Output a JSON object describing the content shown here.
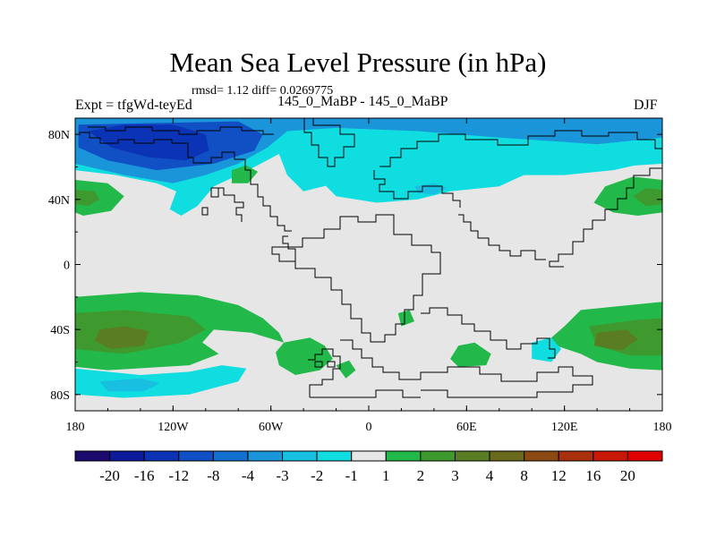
{
  "header": {
    "title": "Mean Sea Level Pressure (in hPa)",
    "stats": "rmsd= 1.12 diff= 0.0269775",
    "left_label": "Expt = tfgWd-teyEd",
    "center_label": "145_0_MaBP - 145_0_MaBP",
    "right_label": "DJF"
  },
  "chart_data": {
    "type": "heatmap",
    "title": "Mean Sea Level Pressure (in hPa)",
    "xlabel": "",
    "ylabel": "",
    "xlim": [
      -180,
      180
    ],
    "ylim": [
      -90,
      90
    ],
    "x_ticks": [
      {
        "value": -180,
        "label": "180"
      },
      {
        "value": -120,
        "label": "120W"
      },
      {
        "value": -60,
        "label": "60W"
      },
      {
        "value": 0,
        "label": "0"
      },
      {
        "value": 60,
        "label": "60E"
      },
      {
        "value": 120,
        "label": "120E"
      },
      {
        "value": 180,
        "label": "180"
      }
    ],
    "y_ticks": [
      {
        "value": 80,
        "label": "80N"
      },
      {
        "value": 40,
        "label": "40N"
      },
      {
        "value": 0,
        "label": "0"
      },
      {
        "value": -40,
        "label": "40S"
      },
      {
        "value": -80,
        "label": "80S"
      }
    ],
    "colorbar": {
      "levels": [
        "-20",
        "-16",
        "-12",
        "-8",
        "-4",
        "-3",
        "-2",
        "-1",
        "1",
        "2",
        "3",
        "4",
        "8",
        "12",
        "16",
        "20"
      ],
      "colors": [
        "#1c0a6e",
        "#0d1a9c",
        "#0a33b5",
        "#1050c4",
        "#1470d0",
        "#1a95da",
        "#18bfe0",
        "#10dde0",
        "#e6e6e6",
        "#22b84a",
        "#3e9a2e",
        "#5a7c22",
        "#6a6a1c",
        "#8a4a12",
        "#a8300c",
        "#c81808",
        "#e00000"
      ]
    },
    "regions": [
      {
        "name": "arctic-low-core",
        "level_index": 2,
        "polygon": [
          [
            -172,
            82
          ],
          [
            -150,
            86
          ],
          [
            -120,
            86
          ],
          [
            -100,
            80
          ],
          [
            -98,
            70
          ],
          [
            -112,
            64
          ],
          [
            -135,
            66
          ],
          [
            -158,
            72
          ]
        ]
      },
      {
        "name": "arctic-low-inner",
        "level_index": 3,
        "polygon": [
          [
            -178,
            86
          ],
          [
            -80,
            88
          ],
          [
            -65,
            80
          ],
          [
            -70,
            70
          ],
          [
            -95,
            62
          ],
          [
            -130,
            58
          ],
          [
            -160,
            64
          ],
          [
            -178,
            72
          ]
        ]
      },
      {
        "name": "arctic-low-mid",
        "level_index": 5,
        "polygon": [
          [
            -180,
            90
          ],
          [
            180,
            90
          ],
          [
            180,
            78
          ],
          [
            140,
            74
          ],
          [
            80,
            78
          ],
          [
            30,
            82
          ],
          [
            -20,
            84
          ],
          [
            -50,
            82
          ],
          [
            -62,
            72
          ],
          [
            -80,
            62
          ],
          [
            -100,
            55
          ],
          [
            -120,
            50
          ],
          [
            -150,
            55
          ],
          [
            -180,
            62
          ]
        ]
      },
      {
        "name": "arctic-low-outer",
        "level_index": 7,
        "polygon": [
          [
            -180,
            90
          ],
          [
            180,
            90
          ],
          [
            180,
            62
          ],
          [
            150,
            60
          ],
          [
            115,
            55
          ],
          [
            90,
            60
          ],
          [
            60,
            52
          ],
          [
            20,
            55
          ],
          [
            0,
            58
          ],
          [
            -20,
            50
          ],
          [
            -40,
            45
          ],
          [
            -50,
            55
          ],
          [
            -55,
            68
          ],
          [
            -70,
            60
          ],
          [
            -80,
            55
          ],
          [
            -95,
            48
          ],
          [
            -105,
            36
          ],
          [
            -115,
            30
          ],
          [
            -122,
            34
          ],
          [
            -118,
            45
          ],
          [
            -130,
            50
          ],
          [
            -155,
            55
          ],
          [
            -180,
            58
          ]
        ]
      },
      {
        "name": "siberian-low",
        "level_index": 7,
        "polygon": [
          [
            -30,
            52
          ],
          [
            -10,
            58
          ],
          [
            30,
            62
          ],
          [
            70,
            65
          ],
          [
            110,
            72
          ],
          [
            150,
            70
          ],
          [
            168,
            62
          ],
          [
            150,
            58
          ],
          [
            120,
            55
          ],
          [
            95,
            55
          ],
          [
            80,
            48
          ],
          [
            50,
            45
          ],
          [
            30,
            40
          ],
          [
            5,
            38
          ],
          [
            -20,
            42
          ]
        ]
      },
      {
        "name": "siberian-low-core",
        "level_index": 6,
        "polygon": [
          [
            28,
            48
          ],
          [
            40,
            50
          ],
          [
            48,
            47
          ],
          [
            40,
            43
          ],
          [
            30,
            44
          ]
        ]
      },
      {
        "name": "nw-pacific-high",
        "level_index": 9,
        "polygon": [
          [
            -180,
            52
          ],
          [
            -160,
            50
          ],
          [
            -150,
            42
          ],
          [
            -158,
            33
          ],
          [
            -175,
            30
          ],
          [
            -180,
            32
          ]
        ]
      },
      {
        "name": "nw-pacific-high-core",
        "level_index": 10,
        "polygon": [
          [
            -180,
            46
          ],
          [
            -168,
            45
          ],
          [
            -165,
            40
          ],
          [
            -172,
            36
          ],
          [
            -180,
            37
          ]
        ]
      },
      {
        "name": "ne-pacific-high",
        "level_index": 9,
        "polygon": [
          [
            180,
            52
          ],
          [
            162,
            54
          ],
          [
            145,
            48
          ],
          [
            138,
            38
          ],
          [
            150,
            32
          ],
          [
            165,
            30
          ],
          [
            180,
            32
          ]
        ]
      },
      {
        "name": "ne-pacific-high-core",
        "level_index": 10,
        "polygon": [
          [
            180,
            46
          ],
          [
            170,
            47
          ],
          [
            162,
            42
          ],
          [
            170,
            36
          ],
          [
            180,
            37
          ]
        ]
      },
      {
        "name": "small-high-a",
        "level_index": 9,
        "polygon": [
          [
            -84,
            58
          ],
          [
            -75,
            61
          ],
          [
            -68,
            57
          ],
          [
            -74,
            50
          ],
          [
            -84,
            50
          ]
        ]
      },
      {
        "name": "south-high-west",
        "level_index": 9,
        "polygon": [
          [
            -180,
            -20
          ],
          [
            -140,
            -17
          ],
          [
            -105,
            -19
          ],
          [
            -80,
            -25
          ],
          [
            -65,
            -33
          ],
          [
            -55,
            -42
          ],
          [
            -52,
            -48
          ],
          [
            -62,
            -45
          ],
          [
            -72,
            -42
          ],
          [
            -95,
            -40
          ],
          [
            -102,
            -48
          ],
          [
            -92,
            -55
          ],
          [
            -110,
            -62
          ],
          [
            -160,
            -65
          ],
          [
            -180,
            -63
          ]
        ]
      },
      {
        "name": "south-high-west-mid",
        "level_index": 10,
        "polygon": [
          [
            -180,
            -30
          ],
          [
            -150,
            -28
          ],
          [
            -110,
            -32
          ],
          [
            -100,
            -40
          ],
          [
            -115,
            -48
          ],
          [
            -150,
            -55
          ],
          [
            -180,
            -52
          ]
        ]
      },
      {
        "name": "south-high-west-core",
        "level_index": 11,
        "polygon": [
          [
            -165,
            -40
          ],
          [
            -150,
            -38
          ],
          [
            -135,
            -41
          ],
          [
            -138,
            -50
          ],
          [
            -158,
            -52
          ],
          [
            -168,
            -47
          ]
        ]
      },
      {
        "name": "south-high-atlantic",
        "level_index": 9,
        "polygon": [
          [
            -52,
            -48
          ],
          [
            -36,
            -45
          ],
          [
            -27,
            -50
          ],
          [
            -22,
            -58
          ],
          [
            -30,
            -65
          ],
          [
            -45,
            -68
          ],
          [
            -55,
            -62
          ],
          [
            -57,
            -54
          ]
        ]
      },
      {
        "name": "south-high-atlantic-bit",
        "level_index": 9,
        "polygon": [
          [
            -20,
            -62
          ],
          [
            -12,
            -59
          ],
          [
            -8,
            -65
          ],
          [
            -14,
            -70
          ]
        ]
      },
      {
        "name": "south-high-small",
        "level_index": 9,
        "polygon": [
          [
            18,
            -30
          ],
          [
            25,
            -28
          ],
          [
            28,
            -35
          ],
          [
            20,
            -38
          ]
        ]
      },
      {
        "name": "south-high-indian",
        "level_index": 9,
        "polygon": [
          [
            55,
            -50
          ],
          [
            65,
            -48
          ],
          [
            75,
            -55
          ],
          [
            72,
            -62
          ],
          [
            55,
            -63
          ],
          [
            50,
            -58
          ]
        ]
      },
      {
        "name": "south-high-east",
        "level_index": 9,
        "polygon": [
          [
            130,
            -28
          ],
          [
            160,
            -25
          ],
          [
            180,
            -23
          ],
          [
            180,
            -65
          ],
          [
            160,
            -64
          ],
          [
            140,
            -60
          ],
          [
            130,
            -55
          ],
          [
            115,
            -50
          ],
          [
            112,
            -45
          ],
          [
            120,
            -38
          ]
        ]
      },
      {
        "name": "south-high-east-mid",
        "level_index": 10,
        "polygon": [
          [
            135,
            -38
          ],
          [
            165,
            -34
          ],
          [
            180,
            -33
          ],
          [
            180,
            -56
          ],
          [
            160,
            -56
          ],
          [
            140,
            -50
          ]
        ]
      },
      {
        "name": "south-high-east-core",
        "level_index": 11,
        "polygon": [
          [
            140,
            -42
          ],
          [
            158,
            -40
          ],
          [
            165,
            -46
          ],
          [
            155,
            -53
          ],
          [
            138,
            -50
          ]
        ]
      },
      {
        "name": "south-low-west",
        "level_index": 7,
        "polygon": [
          [
            -180,
            -64
          ],
          [
            -140,
            -68
          ],
          [
            -110,
            -66
          ],
          [
            -90,
            -62
          ],
          [
            -75,
            -64
          ],
          [
            -80,
            -72
          ],
          [
            -110,
            -80
          ],
          [
            -150,
            -82
          ],
          [
            -180,
            -80
          ]
        ]
      },
      {
        "name": "south-low-west-core",
        "level_index": 6,
        "polygon": [
          [
            -165,
            -72
          ],
          [
            -140,
            -70
          ],
          [
            -128,
            -73
          ],
          [
            -138,
            -78
          ],
          [
            -160,
            -78
          ]
        ]
      },
      {
        "name": "south-low-east",
        "level_index": 7,
        "polygon": [
          [
            100,
            -48
          ],
          [
            112,
            -45
          ],
          [
            118,
            -52
          ],
          [
            112,
            -60
          ],
          [
            100,
            -58
          ]
        ]
      }
    ]
  },
  "colorbar_labels": [
    "-20",
    "-16",
    "-12",
    "-8",
    "-4",
    "-3",
    "-2",
    "-1",
    "1",
    "2",
    "3",
    "4",
    "8",
    "12",
    "16",
    "20"
  ]
}
